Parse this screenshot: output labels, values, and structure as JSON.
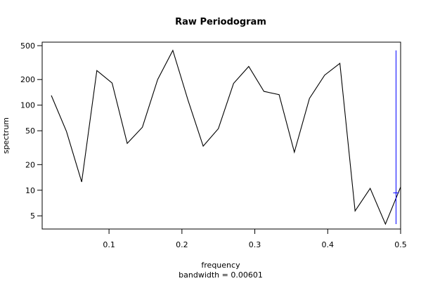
{
  "chart_data": {
    "type": "line",
    "title": "Raw Periodogram",
    "xlabel": "frequency",
    "sublabel": "bandwidth = 0.00601",
    "ylabel": "spectrum",
    "y_scale": "log",
    "xlim": [
      0.0083,
      0.5
    ],
    "ylim": [
      3.5,
      550
    ],
    "x_ticks": [
      0.1,
      0.2,
      0.3,
      0.4,
      0.5
    ],
    "x_tick_labels": [
      "0.1",
      "0.2",
      "0.3",
      "0.4",
      "0.5"
    ],
    "y_ticks": [
      5,
      10,
      20,
      50,
      100,
      200,
      500
    ],
    "y_tick_labels": [
      "5",
      "10",
      "20",
      "50",
      "100",
      "200",
      "500"
    ],
    "series": [
      {
        "color": "#000000",
        "x": [
          0.0208,
          0.0417,
          0.0625,
          0.0833,
          0.1042,
          0.125,
          0.1458,
          0.1667,
          0.1875,
          0.2083,
          0.2292,
          0.25,
          0.2708,
          0.2917,
          0.3125,
          0.3333,
          0.3542,
          0.375,
          0.3958,
          0.4167,
          0.4375,
          0.4583,
          0.4792,
          0.5
        ],
        "y": [
          130,
          49,
          12.5,
          255,
          182,
          35.5,
          55,
          200,
          440,
          115,
          33,
          53,
          180,
          285,
          145,
          133,
          28,
          120,
          225,
          310,
          5.7,
          10.5,
          4,
          10.9
        ]
      }
    ],
    "marker": {
      "color": "#0000ff",
      "x": 0.4937,
      "y_center": 9.3,
      "y_low": 4,
      "y_high": 440
    },
    "grid": false,
    "legend": "none"
  }
}
